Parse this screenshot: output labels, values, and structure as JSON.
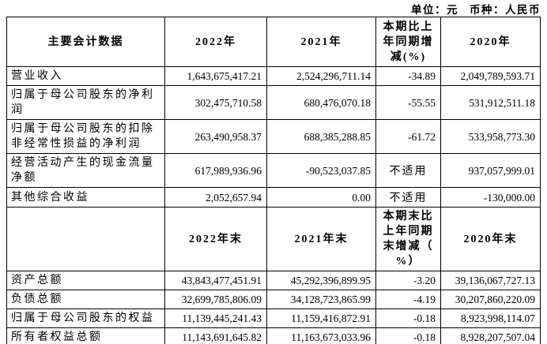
{
  "page": {
    "unit_label": "单位：元",
    "currency_label": "币种：人民币"
  },
  "table": {
    "section1": {
      "header": {
        "label": "主要会计数据",
        "y2022": "2022年",
        "y2021": "2021年",
        "change": "本期比上\n年同期增\n减(%)",
        "y2020": "2020年"
      },
      "rows": [
        {
          "label": "营业收入",
          "y2022": "1,643,675,417.21",
          "y2021": "2,524,296,711.14",
          "change": "-34.89",
          "y2020": "2,049,789,593.71"
        },
        {
          "label": "归属于母公司股东的净利\n润",
          "y2022": "302,475,710.58",
          "y2021": "680,476,070.18",
          "change": "-55.55",
          "y2020": "531,912,511.18"
        },
        {
          "label": "归属于母公司股东的扣除\n非经常性损益的净利润",
          "y2022": "263,490,958.37",
          "y2021": "688,385,288.85",
          "change": "-61.72",
          "y2020": "533,958,773.30"
        },
        {
          "label": "经营活动产生的现金流量\n净额",
          "y2022": "617,989,936.96",
          "y2021": "-90,523,037.85",
          "change": "不适用",
          "y2020": "937,057,999.01"
        },
        {
          "label": "其他综合收益",
          "y2022": "2,052,657.94",
          "y2021": "0.00",
          "change": "不适用",
          "y2020": "-130,000.00"
        }
      ]
    },
    "section2": {
      "header": {
        "label": "",
        "y2022": "2022年末",
        "y2021": "2021年末",
        "change": "本期末比\n上年同期\n末增减（\n%）",
        "y2020": "2020年末"
      },
      "rows": [
        {
          "label": "资产总额",
          "y2022": "43,843,477,451.91",
          "y2021": "45,292,396,899.95",
          "change": "-3.20",
          "y2020": "39,136,067,727.13"
        },
        {
          "label": "负债总额",
          "y2022": "32,699,785,806.09",
          "y2021": "34,128,723,865.99",
          "change": "-4.19",
          "y2020": "30,207,860,220.09"
        },
        {
          "label": "归属于母公司股东的权益",
          "y2022": "11,139,445,241.43",
          "y2021": "11,159,416,872.91",
          "change": "-0.18",
          "y2020": "8,923,998,114.07"
        },
        {
          "label": "所有者权益总额",
          "y2022": "11,143,691,645.82",
          "y2021": "11,163,673,033.96",
          "change": "-0.18",
          "y2020": "8,928,207,507.04"
        }
      ]
    }
  }
}
